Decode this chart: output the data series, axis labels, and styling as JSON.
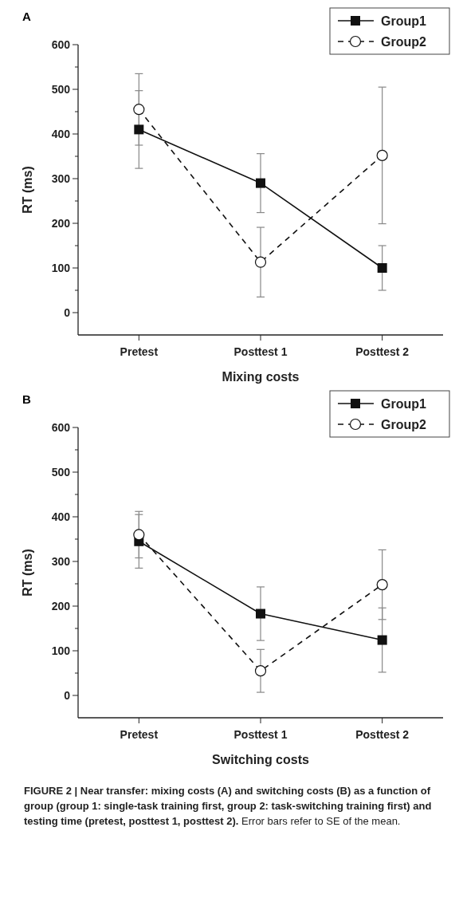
{
  "chart_data": [
    {
      "type": "line",
      "title": "A",
      "xlabel": "Mixing costs",
      "ylabel": "RT (ms)",
      "categories": [
        "Pretest",
        "Posttest 1",
        "Posttest 2"
      ],
      "ylim": [
        -50,
        600
      ],
      "yticks": [
        0,
        {
          "value": 50,
          "label": null
        },
        100,
        {
          "value": 150,
          "label": null
        },
        200,
        {
          "value": 250,
          "label": null
        },
        300,
        {
          "value": 350,
          "label": null
        },
        400,
        {
          "value": 450,
          "label": null
        },
        500,
        {
          "value": 550,
          "label": null
        },
        600
      ],
      "legend": "top right",
      "grid": false,
      "series": [
        {
          "name": "Group1",
          "color": "#111111",
          "marker": "square",
          "line_style": "solid",
          "values": [
            410,
            290,
            100
          ],
          "errors": [
            87,
            66,
            50
          ]
        },
        {
          "name": "Group2",
          "color": "#111111",
          "marker": "circle",
          "line_style": "dashed",
          "values": [
            455,
            113,
            352
          ],
          "errors": [
            80,
            78,
            153
          ]
        }
      ]
    },
    {
      "type": "line",
      "title": "B",
      "xlabel": "Switching costs",
      "ylabel": "RT (ms)",
      "categories": [
        "Pretest",
        "Posttest 1",
        "Posttest 2"
      ],
      "ylim": [
        -50,
        600
      ],
      "yticks": [
        0,
        {
          "value": 50,
          "label": null
        },
        100,
        {
          "value": 150,
          "label": null
        },
        200,
        {
          "value": 250,
          "label": null
        },
        300,
        {
          "value": 350,
          "label": null
        },
        400,
        {
          "value": 450,
          "label": null
        },
        500,
        {
          "value": 550,
          "label": null
        },
        600
      ],
      "legend": "top right",
      "grid": false,
      "series": [
        {
          "name": "Group1",
          "color": "#111111",
          "marker": "square",
          "line_style": "solid",
          "values": [
            345,
            183,
            124
          ],
          "errors": [
            60,
            60,
            72
          ]
        },
        {
          "name": "Group2",
          "color": "#111111",
          "marker": "circle",
          "line_style": "dashed",
          "values": [
            360,
            55,
            248
          ],
          "errors": [
            52,
            48,
            78
          ]
        }
      ],
      "annotations": [
        "FIGURE 2 | Near transfer: mixing costs (A) and switching costs (B) as a function of group (group 1: single-task training first, group 2: task-switching training first) and testing time (pretest, posttest 1, posttest 2).",
        "Error bars refer to SE of the mean."
      ]
    }
  ]
}
